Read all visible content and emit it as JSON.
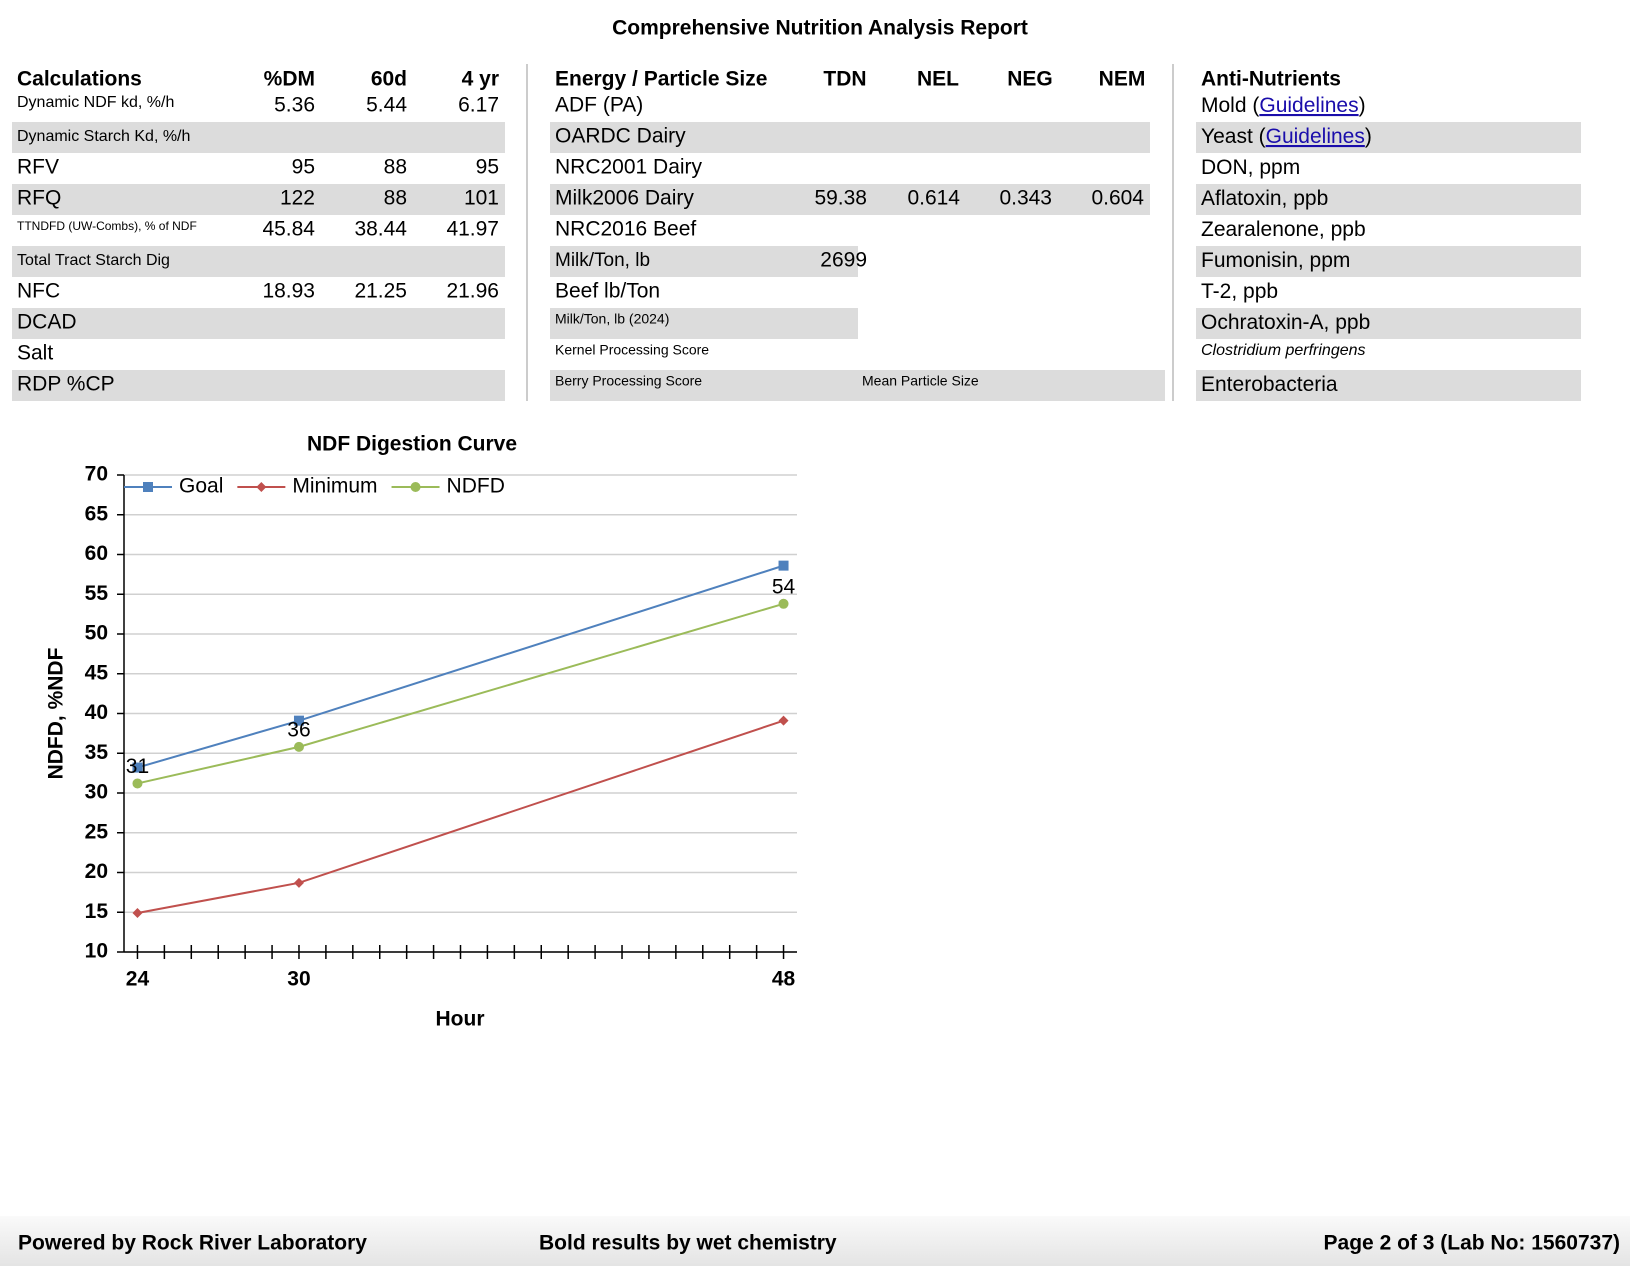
{
  "title": "Comprehensive Nutrition Analysis Report",
  "calculations": {
    "header": [
      "Calculations",
      "%DM",
      "60d",
      "4 yr"
    ],
    "rows": [
      {
        "label": "Dynamic NDF kd, %/h",
        "values": [
          5.36,
          5.44,
          6.17
        ]
      },
      {
        "label": "Dynamic Starch Kd, %/h"
      },
      {
        "label": "RFV",
        "values": [
          95,
          88,
          95
        ]
      },
      {
        "label": "RFQ",
        "values": [
          122,
          88,
          101
        ]
      },
      {
        "label": "TTNDFD (UW-Combs), % of NDF",
        "values": [
          45.84,
          38.44,
          41.97
        ]
      },
      {
        "label": "Total Tract Starch Dig"
      },
      {
        "label": "NFC",
        "values": [
          18.93,
          21.25,
          21.96
        ]
      },
      {
        "label": "DCAD"
      },
      {
        "label": "Salt"
      },
      {
        "label": "RDP %CP"
      }
    ]
  },
  "energy": {
    "header": [
      "Energy / Particle Size",
      "TDN",
      "NEL",
      "NEG",
      "NEM"
    ],
    "rows": [
      {
        "label": "ADF (PA)"
      },
      {
        "label": "OARDC Dairy"
      },
      {
        "label": "NRC2001 Dairy"
      },
      {
        "label": "Milk2006 Dairy",
        "values": [
          59.38,
          0.614,
          0.343,
          0.604
        ]
      },
      {
        "label": "NRC2016 Beef"
      },
      {
        "label": "Milk/Ton, lb",
        "values": [
          2699
        ]
      },
      {
        "label": "Beef lb/Ton"
      },
      {
        "label": "Milk/Ton, lb (2024)"
      },
      {
        "label": "Kernel Processing Score"
      },
      {
        "label": "Berry Processing Score",
        "note": "Mean Particle Size"
      }
    ]
  },
  "anti_nutrients": {
    "header": "Anti-Nutrients",
    "rows": [
      {
        "label": "Mold (",
        "link": "Guidelines",
        "suffix": ")"
      },
      {
        "label": "Yeast (",
        "link": "Guidelines",
        "suffix": ")"
      },
      {
        "label": "DON, ppm"
      },
      {
        "label": "Aflatoxin, ppb"
      },
      {
        "label": "Zearalenone, ppb"
      },
      {
        "label": "Fumonisin, ppm"
      },
      {
        "label": "T-2, ppb"
      },
      {
        "label": "Ochratoxin-A, ppb"
      },
      {
        "label": "Clostridium perfringens"
      },
      {
        "label": "Enterobacteria"
      }
    ]
  },
  "chart_data": {
    "type": "line",
    "title": "NDF Digestion Curve",
    "x_label": "Hour",
    "y_label": "NDFD, %NDF",
    "x": [
      24,
      30,
      48
    ],
    "xlim": [
      23.5,
      48.5
    ],
    "xticks": [
      24,
      30,
      48
    ],
    "xminorticks": [
      24,
      25,
      26,
      27,
      28,
      29,
      30,
      31,
      32,
      33,
      34,
      35,
      36,
      37,
      38,
      39,
      40,
      41,
      42,
      43,
      44,
      45,
      46,
      47,
      48
    ],
    "ylim": [
      10,
      70
    ],
    "yticks": [
      10,
      15,
      20,
      25,
      30,
      35,
      40,
      45,
      50,
      55,
      60,
      65,
      70
    ],
    "grid": true,
    "legend": "top-left",
    "series": [
      {
        "name": "Goal",
        "color": "#4f81bd",
        "marker": "square",
        "values": [
          33.2,
          39.1,
          58.6
        ]
      },
      {
        "name": "Minimum",
        "color": "#c0504d",
        "marker": "diamond",
        "values": [
          14.9,
          18.7,
          39.1
        ]
      },
      {
        "name": "NDFD",
        "color": "#9bbb59",
        "marker": "circle",
        "values": [
          31.2,
          35.8,
          53.8
        ],
        "value_labels": [
          "31",
          "36",
          "54"
        ]
      }
    ]
  },
  "footer": {
    "left": "Powered by Rock River Laboratory",
    "center": "Bold results by wet chemistry",
    "right": "Page 2 of 3 (Lab No: 1560737)"
  }
}
